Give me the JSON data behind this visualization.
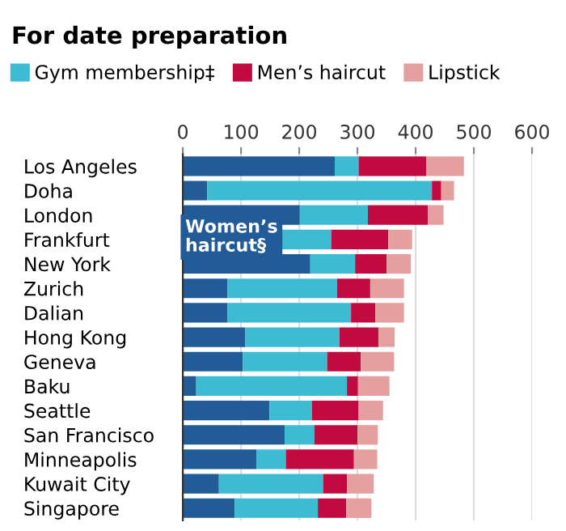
{
  "chart_data": {
    "type": "bar",
    "title": "For date preparation",
    "orientation": "horizontal",
    "stacked": true,
    "categories": [
      "Los Angeles",
      "Doha",
      "London",
      "Frankfurt",
      "New York",
      "Zurich",
      "Dalian",
      "Hong Kong",
      "Geneva",
      "Baku",
      "Seattle",
      "San Francisco",
      "Minneapolis",
      "Kuwait City",
      "Singapore"
    ],
    "series": [
      {
        "name": "Women’s haircut§",
        "color": "#215b98",
        "values": [
          261,
          42,
          201,
          169,
          219,
          77,
          77,
          107,
          103,
          23,
          149,
          175,
          127,
          62,
          89
        ]
      },
      {
        "name": "Gym membership‡",
        "color": "#3dbbd3",
        "values": [
          41,
          386,
          117,
          86,
          77,
          188,
          212,
          162,
          145,
          259,
          73,
          51,
          50,
          179,
          143
        ]
      },
      {
        "name": "Men’s haircut",
        "color": "#c10a3f",
        "values": [
          116,
          16,
          103,
          98,
          54,
          57,
          42,
          67,
          58,
          19,
          80,
          74,
          117,
          41,
          49
        ]
      },
      {
        "name": "Lipstick",
        "color": "#e59f9f",
        "values": [
          65,
          22,
          27,
          41,
          42,
          58,
          49,
          28,
          57,
          54,
          42,
          35,
          40,
          46,
          43
        ]
      }
    ],
    "xlim": [
      0,
      600
    ],
    "xticks": [
      0,
      100,
      200,
      300,
      400,
      500,
      600
    ],
    "grid": "x",
    "legend": "top left"
  }
}
